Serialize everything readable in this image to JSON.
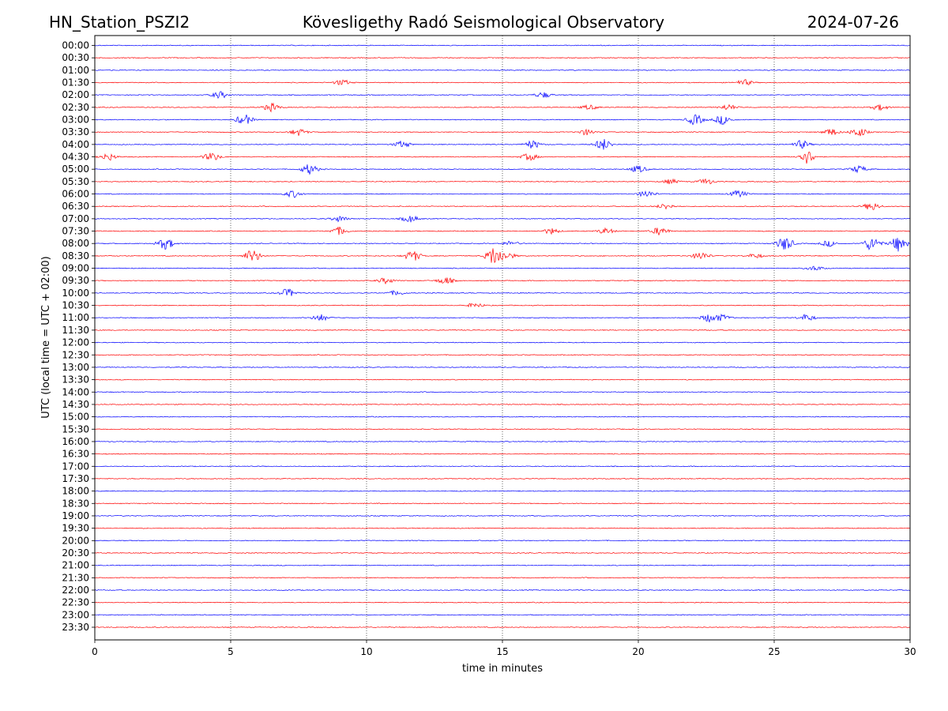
{
  "header": {
    "station": "HN_Station_PSZI2",
    "observatory": "Kövesligethy Radó Seismological Observatory",
    "date": "2024-07-26"
  },
  "chart_data": {
    "type": "line",
    "title": "Kövesligethy Radó Seismological Observatory",
    "xlabel": "time in minutes",
    "ylabel": "UTC (local time = UTC + 02:00)",
    "xlim": [
      0,
      30
    ],
    "x_ticks": [
      0,
      5,
      10,
      15,
      20,
      25,
      30
    ],
    "grid": "vertical dotted lines at 5-minute ticks",
    "colors": [
      "#0000ff",
      "#ff0000"
    ],
    "rows": [
      "00:00",
      "00:30",
      "01:00",
      "01:30",
      "02:00",
      "02:30",
      "03:00",
      "03:30",
      "04:00",
      "04:30",
      "05:00",
      "05:30",
      "06:00",
      "06:30",
      "07:00",
      "07:30",
      "08:00",
      "08:30",
      "09:00",
      "09:30",
      "10:00",
      "10:30",
      "11:00",
      "11:30",
      "12:00",
      "12:30",
      "13:00",
      "13:30",
      "14:00",
      "14:30",
      "15:00",
      "15:30",
      "16:00",
      "16:30",
      "17:00",
      "17:30",
      "18:00",
      "18:30",
      "19:00",
      "19:30",
      "20:00",
      "20:30",
      "21:00",
      "21:30",
      "22:00",
      "22:30",
      "23:00",
      "23:30"
    ],
    "events": [
      {
        "row": 3,
        "minute": 9.1,
        "amp": 0.25
      },
      {
        "row": 3,
        "minute": 23.9,
        "amp": 0.25
      },
      {
        "row": 4,
        "minute": 4.6,
        "amp": 0.3
      },
      {
        "row": 4,
        "minute": 16.5,
        "amp": 0.25
      },
      {
        "row": 5,
        "minute": 6.5,
        "amp": 0.35
      },
      {
        "row": 5,
        "minute": 18.2,
        "amp": 0.2
      },
      {
        "row": 5,
        "minute": 28.9,
        "amp": 0.25
      },
      {
        "row": 5,
        "minute": 23.3,
        "amp": 0.25
      },
      {
        "row": 6,
        "minute": 22.1,
        "amp": 0.45
      },
      {
        "row": 6,
        "minute": 5.5,
        "amp": 0.45
      },
      {
        "row": 6,
        "minute": 23.1,
        "amp": 0.4
      },
      {
        "row": 7,
        "minute": 18.1,
        "amp": 0.25
      },
      {
        "row": 7,
        "minute": 28.1,
        "amp": 0.4
      },
      {
        "row": 7,
        "minute": 7.5,
        "amp": 0.3
      },
      {
        "row": 7,
        "minute": 27.1,
        "amp": 0.3
      },
      {
        "row": 8,
        "minute": 11.3,
        "amp": 0.3
      },
      {
        "row": 8,
        "minute": 26.0,
        "amp": 0.35
      },
      {
        "row": 8,
        "minute": 16.1,
        "amp": 0.35
      },
      {
        "row": 8,
        "minute": 18.7,
        "amp": 0.5
      },
      {
        "row": 9,
        "minute": 4.3,
        "amp": 0.35
      },
      {
        "row": 9,
        "minute": 16.0,
        "amp": 0.3
      },
      {
        "row": 9,
        "minute": 26.2,
        "amp": 0.6
      },
      {
        "row": 9,
        "minute": 0.5,
        "amp": 0.3
      },
      {
        "row": 10,
        "minute": 7.9,
        "amp": 0.45
      },
      {
        "row": 10,
        "minute": 20.0,
        "amp": 0.3
      },
      {
        "row": 10,
        "minute": 28.1,
        "amp": 0.3
      },
      {
        "row": 11,
        "minute": 21.2,
        "amp": 0.2
      },
      {
        "row": 11,
        "minute": 22.5,
        "amp": 0.25
      },
      {
        "row": 12,
        "minute": 20.3,
        "amp": 0.3
      },
      {
        "row": 12,
        "minute": 23.7,
        "amp": 0.3
      },
      {
        "row": 12,
        "minute": 7.3,
        "amp": 0.3
      },
      {
        "row": 13,
        "minute": 21.0,
        "amp": 0.25
      },
      {
        "row": 13,
        "minute": 28.6,
        "amp": 0.35
      },
      {
        "row": 14,
        "minute": 9.0,
        "amp": 0.25
      },
      {
        "row": 14,
        "minute": 11.6,
        "amp": 0.3
      },
      {
        "row": 15,
        "minute": 16.8,
        "amp": 0.25
      },
      {
        "row": 15,
        "minute": 18.8,
        "amp": 0.25
      },
      {
        "row": 15,
        "minute": 9.0,
        "amp": 0.35
      },
      {
        "row": 15,
        "minute": 20.8,
        "amp": 0.35
      },
      {
        "row": 16,
        "minute": 15.3,
        "amp": 0.2
      },
      {
        "row": 16,
        "minute": 27.0,
        "amp": 0.25
      },
      {
        "row": 16,
        "minute": 28.6,
        "amp": 0.6
      },
      {
        "row": 16,
        "minute": 2.6,
        "amp": 0.5
      },
      {
        "row": 16,
        "minute": 25.4,
        "amp": 0.6
      },
      {
        "row": 16,
        "minute": 29.6,
        "amp": 0.7
      },
      {
        "row": 17,
        "minute": 5.8,
        "amp": 0.55
      },
      {
        "row": 17,
        "minute": 11.7,
        "amp": 0.45
      },
      {
        "row": 17,
        "minute": 14.7,
        "amp": 0.8
      },
      {
        "row": 17,
        "minute": 22.3,
        "amp": 0.35
      },
      {
        "row": 17,
        "minute": 15.2,
        "amp": 0.25
      },
      {
        "row": 17,
        "minute": 24.3,
        "amp": 0.2
      },
      {
        "row": 18,
        "minute": 26.5,
        "amp": 0.2
      },
      {
        "row": 19,
        "minute": 10.7,
        "amp": 0.25
      },
      {
        "row": 19,
        "minute": 12.9,
        "amp": 0.3
      },
      {
        "row": 20,
        "minute": 11.1,
        "amp": 0.2
      },
      {
        "row": 20,
        "minute": 7.1,
        "amp": 0.35
      },
      {
        "row": 21,
        "minute": 14.0,
        "amp": 0.2
      },
      {
        "row": 22,
        "minute": 8.3,
        "amp": 0.3
      },
      {
        "row": 22,
        "minute": 22.6,
        "amp": 0.35
      },
      {
        "row": 22,
        "minute": 26.2,
        "amp": 0.3
      },
      {
        "row": 22,
        "minute": 23.1,
        "amp": 0.25
      }
    ]
  }
}
